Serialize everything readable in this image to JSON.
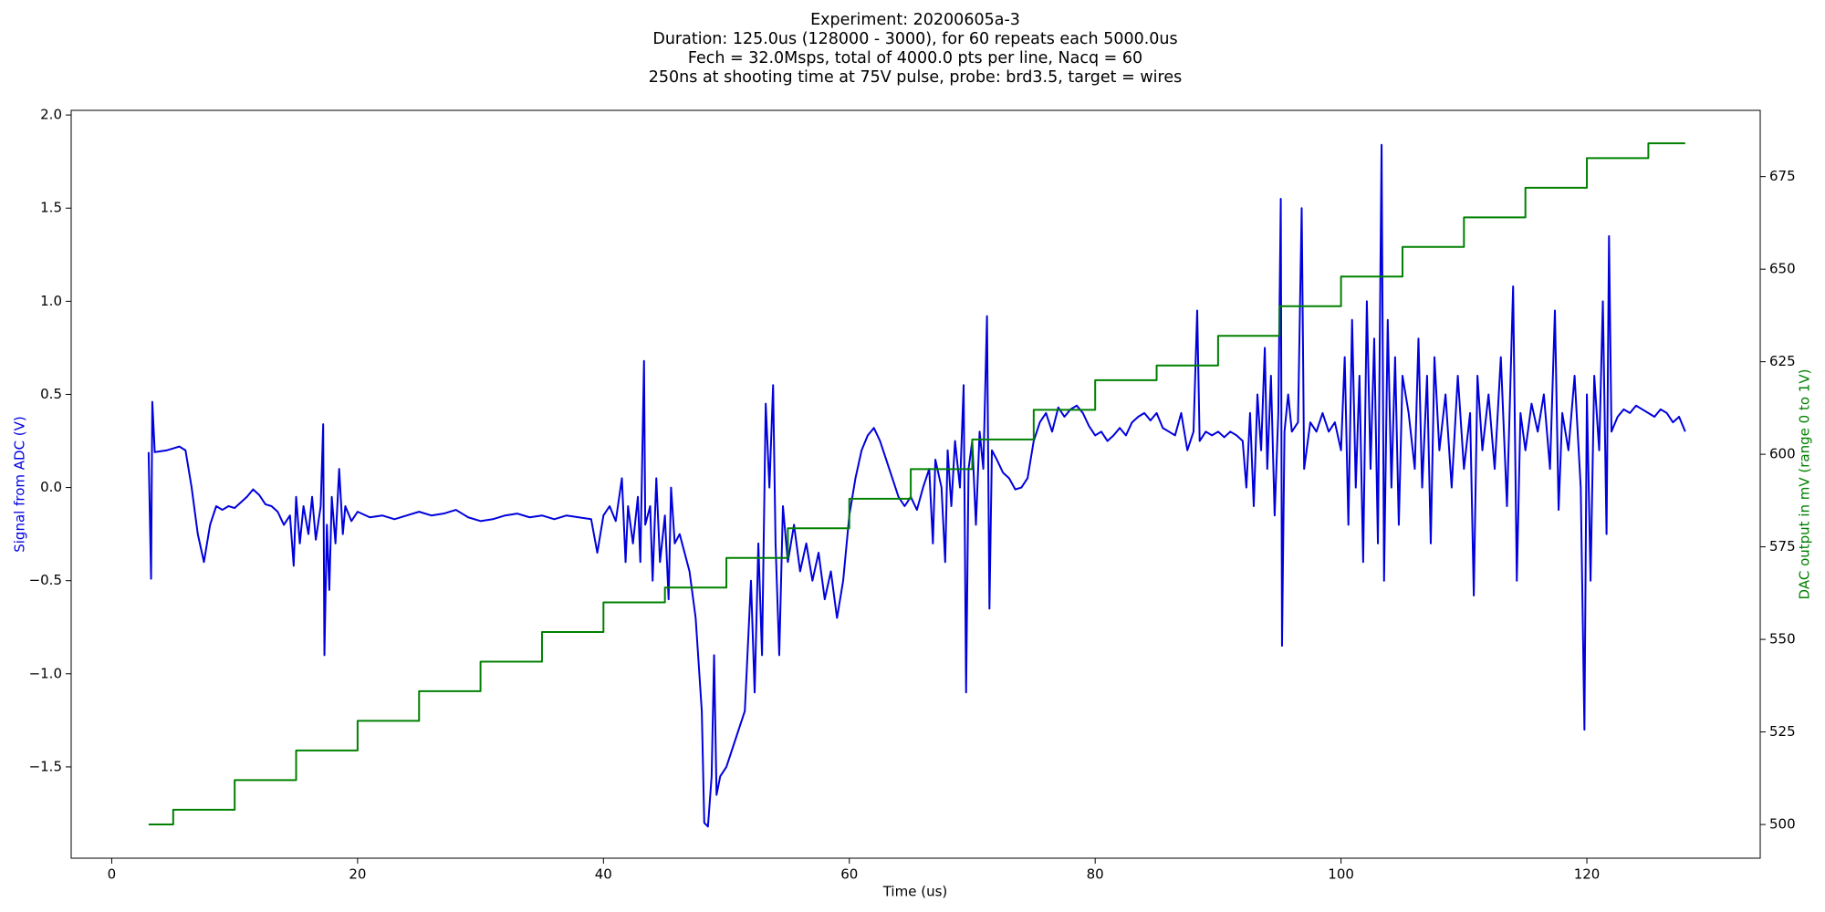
{
  "chart_data": {
    "type": "line",
    "title": [
      "Experiment: 20200605a-3",
      "Duration: 125.0us (128000 - 3000), for 60 repeats each 5000.0us",
      "Fech = 32.0Msps, total of 4000.0 pts per line, Nacq = 60",
      "250ns at shooting time at 75V pulse, probe: brd3.5, target = wires"
    ],
    "xlabel": "Time (us)",
    "ylabel": "Signal from ADC (V)",
    "y2label": "DAC output in mV (range 0 to 1V)",
    "xlim": [
      -3.3,
      134.1
    ],
    "xticks": [
      0,
      20,
      40,
      60,
      80,
      100,
      120
    ],
    "ylim": [
      -1.99,
      2.025
    ],
    "yticks": [
      {
        "value": -1.5,
        "label": "−1.5"
      },
      {
        "value": -1.0,
        "label": "−1.0"
      },
      {
        "value": -0.5,
        "label": "−0.5"
      },
      {
        "value": 0,
        "label": "0.0"
      },
      {
        "value": 0.5,
        "label": "0.5"
      },
      {
        "value": 1.0,
        "label": "1.0"
      },
      {
        "value": 1.5,
        "label": "1.5"
      },
      {
        "value": 2.0,
        "label": "2.0"
      }
    ],
    "y2lim": [
      490.9,
      692.9
    ],
    "y2ticks": [
      500,
      525,
      550,
      575,
      600,
      625,
      650,
      675
    ],
    "series": [
      {
        "color": "#0000dd",
        "x": [
          3.0,
          3.2,
          3.3,
          3.5,
          4.5,
          5.0,
          5.5,
          6.0,
          6.5,
          7.0,
          7.5,
          8.0,
          8.5,
          9.0,
          9.5,
          10.0,
          10.5,
          11.0,
          11.5,
          12.0,
          12.5,
          13.0,
          13.5,
          14.0,
          14.5,
          14.8,
          15.0,
          15.3,
          15.6,
          16.0,
          16.3,
          16.6,
          17.0,
          17.2,
          17.3,
          17.5,
          17.7,
          17.9,
          18.2,
          18.5,
          18.8,
          19.0,
          19.5,
          20,
          21,
          22,
          23,
          24,
          25,
          26,
          27,
          28,
          29,
          30,
          31,
          32,
          33,
          34,
          35,
          36,
          37,
          38,
          39,
          39.5,
          40,
          40.5,
          41,
          41.5,
          41.8,
          42,
          42.4,
          42.8,
          43.0,
          43.3,
          43.4,
          43.8,
          44.0,
          44.3,
          44.6,
          45.0,
          45.3,
          45.5,
          45.8,
          46.2,
          46.6,
          47.0,
          47.5,
          48.0,
          48.2,
          48.5,
          48.8,
          49.0,
          49.2,
          49.5,
          50.0,
          50.5,
          51.0,
          51.5,
          52.0,
          52.3,
          52.6,
          52.9,
          53.2,
          53.5,
          53.8,
          54.0,
          54.3,
          54.6,
          55.0,
          55.5,
          56,
          56.5,
          57,
          57.5,
          58,
          58.5,
          59,
          59.5,
          60,
          60.5,
          61,
          61.5,
          62,
          62.5,
          63,
          63.5,
          64,
          64.5,
          65,
          65.5,
          66,
          66.5,
          66.8,
          67,
          67.5,
          67.8,
          68,
          68.3,
          68.6,
          69,
          69.3,
          69.5,
          69.7,
          70,
          70.3,
          70.6,
          70.9,
          71.2,
          71.4,
          71.6,
          72,
          72.5,
          73,
          73.5,
          74,
          74.5,
          75,
          75.5,
          76,
          76.5,
          77,
          77.5,
          78,
          78.5,
          79,
          79.5,
          80,
          80.5,
          81,
          81.5,
          82,
          82.5,
          83,
          83.5,
          84,
          84.5,
          85,
          85.5,
          86,
          86.5,
          87,
          87.5,
          88,
          88.3,
          88.5,
          89,
          89.5,
          90,
          90.5,
          91,
          91.5,
          92,
          92.3,
          92.6,
          92.9,
          93.2,
          93.5,
          93.8,
          94,
          94.3,
          94.6,
          94.9,
          95.1,
          95.2,
          95.4,
          95.7,
          96,
          96.5,
          96.8,
          97,
          97.5,
          98,
          98.5,
          99,
          99.5,
          100,
          100.3,
          100.6,
          100.9,
          101.2,
          101.5,
          101.8,
          102.1,
          102.4,
          102.7,
          103.0,
          103.3,
          103.5,
          103.8,
          104.1,
          104.4,
          104.7,
          105.0,
          105.5,
          106,
          106.3,
          106.6,
          107,
          107.3,
          107.6,
          108,
          108.5,
          109,
          109.5,
          110,
          110.5,
          110.8,
          111.1,
          111.5,
          112,
          112.5,
          113,
          113.5,
          114,
          114.3,
          114.6,
          115,
          115.5,
          116,
          116.5,
          117,
          117.4,
          117.7,
          118,
          118.5,
          119,
          119.5,
          119.8,
          120,
          120.3,
          120.6,
          121,
          121.3,
          121.6,
          121.8,
          122,
          122.5,
          123,
          123.5,
          124,
          124.5,
          125,
          125.5,
          126,
          126.5,
          127,
          127.5,
          128
        ],
        "values": [
          0.19,
          -0.49,
          0.46,
          0.19,
          0.2,
          0.21,
          0.22,
          0.2,
          0.0,
          -0.25,
          -0.4,
          -0.2,
          -0.1,
          -0.12,
          -0.1,
          -0.11,
          -0.08,
          -0.05,
          -0.01,
          -0.04,
          -0.09,
          -0.1,
          -0.13,
          -0.2,
          -0.15,
          -0.42,
          -0.05,
          -0.3,
          -0.1,
          -0.25,
          -0.05,
          -0.28,
          -0.1,
          0.34,
          -0.9,
          -0.2,
          -0.55,
          -0.05,
          -0.3,
          0.1,
          -0.25,
          -0.1,
          -0.18,
          -0.13,
          -0.16,
          -0.15,
          -0.17,
          -0.15,
          -0.13,
          -0.15,
          -0.14,
          -0.12,
          -0.16,
          -0.18,
          -0.17,
          -0.15,
          -0.14,
          -0.16,
          -0.15,
          -0.17,
          -0.15,
          -0.16,
          -0.17,
          -0.35,
          -0.15,
          -0.1,
          -0.18,
          0.05,
          -0.4,
          -0.1,
          -0.3,
          -0.05,
          -0.4,
          0.68,
          -0.2,
          -0.1,
          -0.5,
          0.05,
          -0.4,
          -0.15,
          -0.6,
          0.0,
          -0.3,
          -0.25,
          -0.35,
          -0.45,
          -0.7,
          -1.2,
          -1.8,
          -1.82,
          -1.55,
          -0.9,
          -1.65,
          -1.55,
          -1.5,
          -1.4,
          -1.3,
          -1.2,
          -0.5,
          -1.1,
          -0.3,
          -0.9,
          0.45,
          0.0,
          0.55,
          -0.3,
          -0.9,
          -0.1,
          -0.4,
          -0.2,
          -0.45,
          -0.3,
          -0.5,
          -0.35,
          -0.6,
          -0.45,
          -0.7,
          -0.5,
          -0.15,
          0.05,
          0.2,
          0.28,
          0.32,
          0.25,
          0.15,
          0.05,
          -0.05,
          -0.1,
          -0.05,
          -0.12,
          0.0,
          0.1,
          -0.3,
          0.15,
          0.0,
          -0.4,
          0.2,
          -0.1,
          0.25,
          0.0,
          0.55,
          -1.1,
          0.1,
          0.25,
          -0.2,
          0.3,
          0.1,
          0.92,
          -0.65,
          0.2,
          0.15,
          0.08,
          0.05,
          -0.01,
          0.0,
          0.05,
          0.25,
          0.35,
          0.4,
          0.3,
          0.43,
          0.38,
          0.42,
          0.44,
          0.4,
          0.33,
          0.28,
          0.3,
          0.25,
          0.28,
          0.32,
          0.28,
          0.35,
          0.38,
          0.4,
          0.36,
          0.4,
          0.32,
          0.3,
          0.28,
          0.4,
          0.2,
          0.3,
          0.95,
          0.25,
          0.3,
          0.28,
          0.3,
          0.27,
          0.3,
          0.28,
          0.25,
          0.0,
          0.4,
          -0.1,
          0.5,
          0.2,
          0.75,
          0.1,
          0.6,
          -0.15,
          0.4,
          1.55,
          -0.85,
          0.3,
          0.5,
          0.3,
          0.35,
          1.5,
          0.1,
          0.35,
          0.3,
          0.4,
          0.3,
          0.35,
          0.2,
          0.7,
          -0.2,
          0.9,
          0.0,
          0.6,
          -0.4,
          1.0,
          0.1,
          0.8,
          -0.3,
          1.84,
          -0.5,
          0.9,
          0.0,
          0.7,
          -0.2,
          0.6,
          0.4,
          0.1,
          0.8,
          0.0,
          0.6,
          -0.3,
          0.7,
          0.2,
          0.5,
          0.0,
          0.6,
          0.1,
          0.4,
          -0.58,
          0.6,
          0.2,
          0.5,
          0.1,
          0.7,
          -0.1,
          1.08,
          -0.5,
          0.4,
          0.2,
          0.45,
          0.3,
          0.5,
          0.1,
          0.95,
          -0.12,
          0.4,
          0.2,
          0.6,
          0.0,
          -1.3,
          0.5,
          -0.5,
          0.6,
          0.2,
          1.0,
          -0.25,
          1.35,
          0.3,
          0.38,
          0.42,
          0.4,
          0.44,
          0.42,
          0.4,
          0.38,
          0.42,
          0.4,
          0.35,
          0.38,
          0.3
        ]
      },
      {
        "color": "#008000",
        "axis": "y2",
        "x": [
          3,
          5,
          5,
          10,
          10,
          15,
          15,
          20,
          20,
          25,
          25,
          30,
          30,
          35,
          35,
          40,
          40,
          45,
          45,
          50,
          50,
          55,
          55,
          60,
          60,
          65,
          65,
          70,
          70,
          75,
          75,
          80,
          80,
          85,
          85,
          90,
          90,
          95,
          95,
          100,
          100,
          105,
          105,
          110,
          110,
          115,
          115,
          120,
          120,
          125,
          125,
          128
        ],
        "values": [
          500,
          500,
          504,
          504,
          512,
          512,
          520,
          520,
          528,
          528,
          536,
          536,
          544,
          544,
          552,
          552,
          560,
          560,
          564,
          564,
          572,
          572,
          580,
          580,
          588,
          588,
          596,
          596,
          604,
          604,
          612,
          612,
          620,
          620,
          624,
          624,
          632,
          632,
          640,
          640,
          648,
          648,
          656,
          656,
          664,
          664,
          672,
          672,
          680,
          680,
          684,
          684
        ]
      }
    ]
  }
}
